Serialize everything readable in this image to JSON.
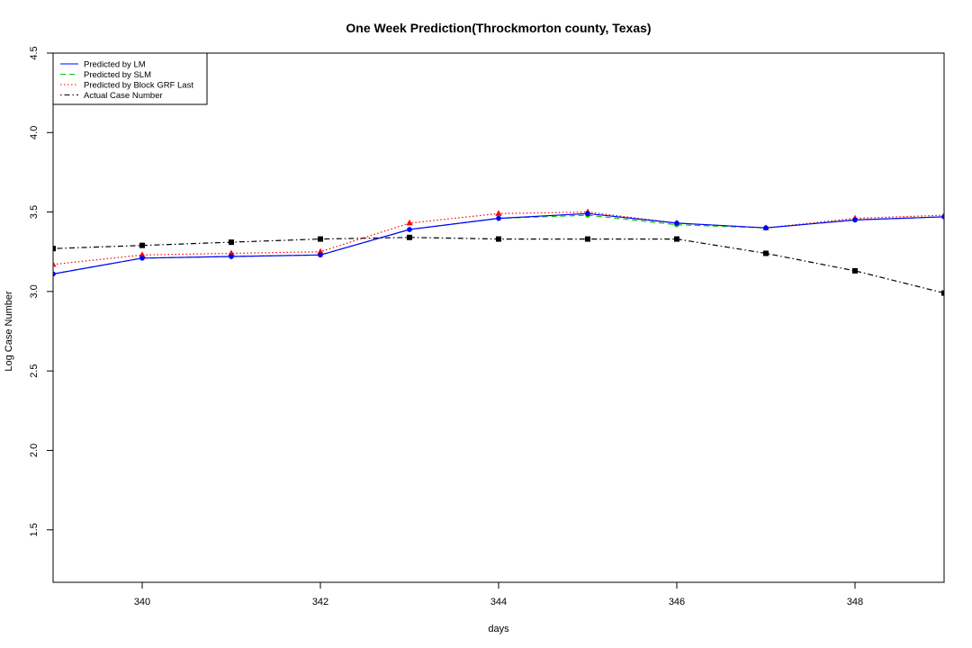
{
  "chart_data": {
    "type": "line",
    "title": "One Week Prediction(Throckmorton county, Texas)",
    "xlabel": "days",
    "ylabel": "Log Case Number",
    "xlim": [
      339,
      349
    ],
    "ylim": [
      1.17,
      4.5
    ],
    "x_ticks": [
      340,
      342,
      344,
      346,
      348
    ],
    "y_ticks": [
      1.5,
      2.0,
      2.5,
      3.0,
      3.5,
      4.0,
      4.5
    ],
    "x_tick_labels": [
      "340",
      "342",
      "344",
      "346",
      "348"
    ],
    "y_tick_labels": [
      "1.5",
      "2.0",
      "2.5",
      "3.0",
      "3.5",
      "4.0",
      "4.5"
    ],
    "grid": false,
    "legend_position": "top-left",
    "x": [
      339,
      340,
      341,
      342,
      343,
      344,
      345,
      346,
      347,
      348,
      349
    ],
    "series": [
      {
        "name": "Predicted by LM",
        "color": "#0000ff",
        "dash": "solid",
        "marker": "circle",
        "values": [
          3.11,
          3.21,
          3.22,
          3.23,
          3.39,
          3.46,
          3.49,
          3.43,
          3.4,
          3.45,
          3.47
        ]
      },
      {
        "name": "Predicted by SLM",
        "color": "#00cd00",
        "dash": "dashed",
        "marker": "circle",
        "values": [
          3.11,
          3.21,
          3.22,
          3.23,
          3.39,
          3.46,
          3.48,
          3.42,
          3.4,
          3.45,
          3.47
        ]
      },
      {
        "name": "Predicted by Block GRF Last",
        "color": "#ff0000",
        "dash": "dotted",
        "marker": "triangle",
        "values": [
          3.17,
          3.23,
          3.24,
          3.25,
          3.43,
          3.49,
          3.5,
          3.43,
          3.4,
          3.46,
          3.48
        ]
      },
      {
        "name": "Actual Case Number",
        "color": "#000000",
        "dash": "dotdash",
        "marker": "square",
        "values": [
          3.27,
          3.29,
          3.31,
          3.33,
          3.34,
          3.33,
          3.33,
          3.33,
          3.24,
          3.13,
          2.99
        ]
      }
    ]
  }
}
